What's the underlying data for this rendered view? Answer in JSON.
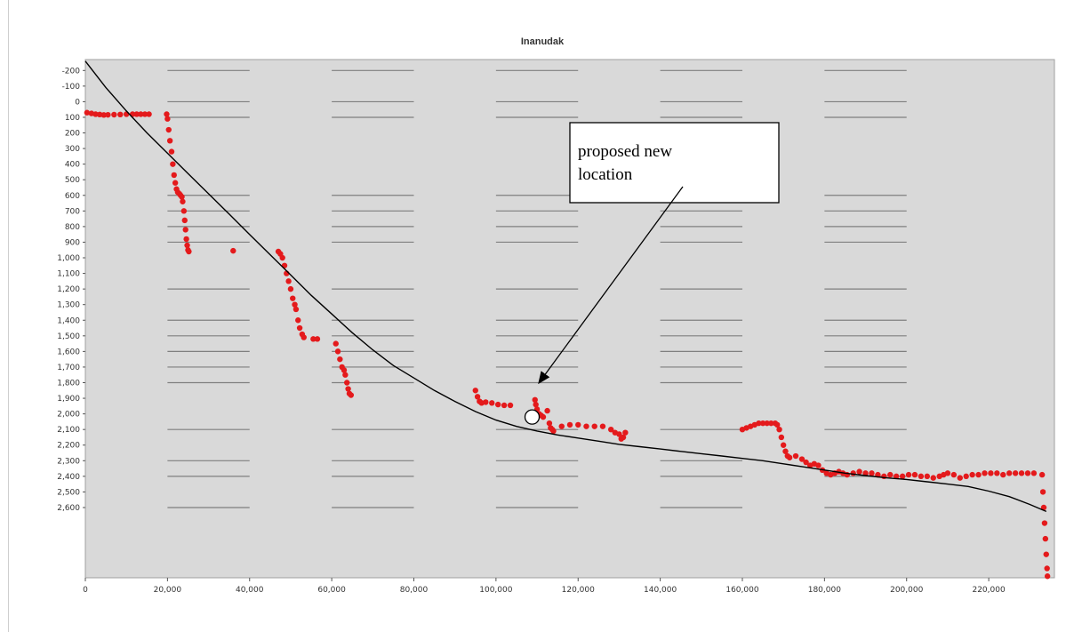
{
  "chart_data": {
    "type": "scatter",
    "title": "Inanudak",
    "xlabel": "",
    "ylabel": "",
    "xlim": [
      0,
      236000
    ],
    "ylim": [
      3050,
      -270
    ],
    "x_ticks": [
      {
        "value": 0,
        "label": "0"
      },
      {
        "value": 20000,
        "label": "20,000"
      },
      {
        "value": 40000,
        "label": "40,000"
      },
      {
        "value": 60000,
        "label": "60,000"
      },
      {
        "value": 80000,
        "label": "80,000"
      },
      {
        "value": 100000,
        "label": "100,000"
      },
      {
        "value": 120000,
        "label": "120,000"
      },
      {
        "value": 140000,
        "label": "140,000"
      },
      {
        "value": 160000,
        "label": "160,000"
      },
      {
        "value": 180000,
        "label": "180,000"
      },
      {
        "value": 200000,
        "label": "200,000"
      },
      {
        "value": 220000,
        "label": "220,000"
      }
    ],
    "y_ticks": [
      {
        "value": -200,
        "label": "-200"
      },
      {
        "value": -100,
        "label": "-100"
      },
      {
        "value": 0,
        "label": "0"
      },
      {
        "value": 100,
        "label": "100"
      },
      {
        "value": 200,
        "label": "200"
      },
      {
        "value": 300,
        "label": "300"
      },
      {
        "value": 400,
        "label": "400"
      },
      {
        "value": 500,
        "label": "500"
      },
      {
        "value": 600,
        "label": "600"
      },
      {
        "value": 700,
        "label": "700"
      },
      {
        "value": 800,
        "label": "800"
      },
      {
        "value": 900,
        "label": "900"
      },
      {
        "value": 1000,
        "label": "1,000"
      },
      {
        "value": 1100,
        "label": "1,100"
      },
      {
        "value": 1200,
        "label": "1,200"
      },
      {
        "value": 1300,
        "label": "1,300"
      },
      {
        "value": 1400,
        "label": "1,400"
      },
      {
        "value": 1500,
        "label": "1,500"
      },
      {
        "value": 1600,
        "label": "1,600"
      },
      {
        "value": 1700,
        "label": "1,700"
      },
      {
        "value": 1800,
        "label": "1,800"
      },
      {
        "value": 1900,
        "label": "1,900"
      },
      {
        "value": 2000,
        "label": "2,000"
      },
      {
        "value": 2100,
        "label": "2,100"
      },
      {
        "value": 2200,
        "label": "2,200"
      },
      {
        "value": 2300,
        "label": "2,300"
      },
      {
        "value": 2400,
        "label": "2,400"
      },
      {
        "value": 2500,
        "label": "2,500"
      },
      {
        "value": 2600,
        "label": "2,600"
      }
    ],
    "grid_rows": [
      -200,
      0,
      100,
      600,
      700,
      800,
      900,
      1200,
      1400,
      1500,
      1600,
      1700,
      1800,
      2100,
      2300,
      2400,
      2600
    ],
    "series": [
      {
        "kind": "scatter",
        "color": "#e41a1c",
        "points": [
          [
            400,
            70
          ],
          [
            1500,
            75
          ],
          [
            2500,
            80
          ],
          [
            3500,
            82
          ],
          [
            4500,
            85
          ],
          [
            5500,
            84
          ],
          [
            7000,
            83
          ],
          [
            8500,
            82
          ],
          [
            10000,
            80
          ],
          [
            11500,
            80
          ],
          [
            12500,
            80
          ],
          [
            13500,
            80
          ],
          [
            14500,
            80
          ],
          [
            15500,
            80
          ],
          [
            19800,
            80
          ],
          [
            20000,
            110
          ],
          [
            20300,
            180
          ],
          [
            20600,
            250
          ],
          [
            21000,
            320
          ],
          [
            21300,
            400
          ],
          [
            21600,
            470
          ],
          [
            21900,
            520
          ],
          [
            22200,
            560
          ],
          [
            22500,
            580
          ],
          [
            22900,
            590
          ],
          [
            23200,
            600
          ],
          [
            23500,
            610
          ],
          [
            23700,
            640
          ],
          [
            24000,
            700
          ],
          [
            24200,
            760
          ],
          [
            24400,
            820
          ],
          [
            24600,
            880
          ],
          [
            24800,
            920
          ],
          [
            25000,
            950
          ],
          [
            25200,
            960
          ],
          [
            36000,
            955
          ],
          [
            47000,
            960
          ],
          [
            47500,
            975
          ],
          [
            48000,
            1000
          ],
          [
            48500,
            1050
          ],
          [
            49000,
            1100
          ],
          [
            49500,
            1150
          ],
          [
            50000,
            1200
          ],
          [
            50500,
            1260
          ],
          [
            51000,
            1300
          ],
          [
            51300,
            1330
          ],
          [
            51800,
            1400
          ],
          [
            52200,
            1450
          ],
          [
            52800,
            1490
          ],
          [
            53200,
            1510
          ],
          [
            55500,
            1520
          ],
          [
            56500,
            1520
          ],
          [
            61000,
            1550
          ],
          [
            61500,
            1600
          ],
          [
            62000,
            1650
          ],
          [
            62500,
            1700
          ],
          [
            63000,
            1720
          ],
          [
            63300,
            1750
          ],
          [
            63700,
            1800
          ],
          [
            64000,
            1840
          ],
          [
            64300,
            1870
          ],
          [
            64700,
            1880
          ],
          [
            95000,
            1850
          ],
          [
            95500,
            1890
          ],
          [
            96000,
            1920
          ],
          [
            96500,
            1930
          ],
          [
            97500,
            1925
          ],
          [
            99000,
            1930
          ],
          [
            100500,
            1940
          ],
          [
            102000,
            1945
          ],
          [
            103500,
            1945
          ],
          [
            109500,
            1910
          ],
          [
            109700,
            1940
          ],
          [
            110000,
            1970
          ],
          [
            110500,
            2000
          ],
          [
            111000,
            2010
          ],
          [
            111500,
            2020
          ],
          [
            112500,
            1980
          ],
          [
            113000,
            2060
          ],
          [
            113300,
            2090
          ],
          [
            113700,
            2100
          ],
          [
            114000,
            2110
          ],
          [
            116000,
            2080
          ],
          [
            118000,
            2070
          ],
          [
            120000,
            2070
          ],
          [
            122000,
            2080
          ],
          [
            124000,
            2080
          ],
          [
            126000,
            2080
          ],
          [
            128000,
            2100
          ],
          [
            129000,
            2120
          ],
          [
            130000,
            2130
          ],
          [
            130500,
            2160
          ],
          [
            131000,
            2150
          ],
          [
            131500,
            2120
          ],
          [
            160000,
            2100
          ],
          [
            161000,
            2090
          ],
          [
            162000,
            2080
          ],
          [
            163000,
            2070
          ],
          [
            164000,
            2060
          ],
          [
            165000,
            2060
          ],
          [
            166000,
            2060
          ],
          [
            167000,
            2060
          ],
          [
            168000,
            2060
          ],
          [
            168500,
            2070
          ],
          [
            169000,
            2100
          ],
          [
            169500,
            2150
          ],
          [
            170000,
            2200
          ],
          [
            170500,
            2240
          ],
          [
            171000,
            2270
          ],
          [
            171500,
            2280
          ],
          [
            173000,
            2270
          ],
          [
            174500,
            2290
          ],
          [
            175500,
            2310
          ],
          [
            176500,
            2330
          ],
          [
            177500,
            2320
          ],
          [
            178500,
            2330
          ],
          [
            179500,
            2360
          ],
          [
            180500,
            2380
          ],
          [
            181500,
            2390
          ],
          [
            182500,
            2380
          ],
          [
            183500,
            2370
          ],
          [
            184500,
            2380
          ],
          [
            185500,
            2390
          ],
          [
            187000,
            2380
          ],
          [
            188500,
            2370
          ],
          [
            190000,
            2380
          ],
          [
            191500,
            2380
          ],
          [
            193000,
            2390
          ],
          [
            194500,
            2400
          ],
          [
            196000,
            2390
          ],
          [
            197500,
            2400
          ],
          [
            199000,
            2400
          ],
          [
            200500,
            2390
          ],
          [
            202000,
            2390
          ],
          [
            203500,
            2400
          ],
          [
            205000,
            2400
          ],
          [
            206500,
            2410
          ],
          [
            208000,
            2400
          ],
          [
            209000,
            2390
          ],
          [
            210000,
            2380
          ],
          [
            211500,
            2390
          ],
          [
            213000,
            2410
          ],
          [
            214500,
            2400
          ],
          [
            216000,
            2390
          ],
          [
            217500,
            2390
          ],
          [
            219000,
            2380
          ],
          [
            220500,
            2380
          ],
          [
            222000,
            2380
          ],
          [
            223500,
            2390
          ],
          [
            225000,
            2380
          ],
          [
            226500,
            2380
          ],
          [
            228000,
            2380
          ],
          [
            229500,
            2380
          ],
          [
            231000,
            2380
          ],
          [
            233000,
            2390
          ],
          [
            233200,
            2500
          ],
          [
            233400,
            2600
          ],
          [
            233600,
            2700
          ],
          [
            233800,
            2800
          ],
          [
            234000,
            2900
          ],
          [
            234200,
            2990
          ],
          [
            234300,
            3040
          ]
        ]
      },
      {
        "kind": "line",
        "color": "#000000",
        "points": [
          [
            0,
            -260
          ],
          [
            5000,
            -90
          ],
          [
            10000,
            60
          ],
          [
            15000,
            200
          ],
          [
            20000,
            330
          ],
          [
            25000,
            460
          ],
          [
            30000,
            590
          ],
          [
            35000,
            720
          ],
          [
            40000,
            850
          ],
          [
            45000,
            980
          ],
          [
            50000,
            1110
          ],
          [
            55000,
            1240
          ],
          [
            60000,
            1360
          ],
          [
            65000,
            1480
          ],
          [
            70000,
            1590
          ],
          [
            75000,
            1690
          ],
          [
            80000,
            1770
          ],
          [
            85000,
            1850
          ],
          [
            90000,
            1920
          ],
          [
            95000,
            1985
          ],
          [
            100000,
            2040
          ],
          [
            105000,
            2080
          ],
          [
            110000,
            2110
          ],
          [
            115000,
            2135
          ],
          [
            120000,
            2155
          ],
          [
            125000,
            2175
          ],
          [
            130000,
            2195
          ],
          [
            135000,
            2210
          ],
          [
            140000,
            2225
          ],
          [
            145000,
            2240
          ],
          [
            150000,
            2255
          ],
          [
            155000,
            2270
          ],
          [
            160000,
            2285
          ],
          [
            165000,
            2300
          ],
          [
            170000,
            2320
          ],
          [
            175000,
            2340
          ],
          [
            180000,
            2360
          ],
          [
            185000,
            2380
          ],
          [
            190000,
            2395
          ],
          [
            195000,
            2410
          ],
          [
            200000,
            2420
          ],
          [
            205000,
            2435
          ],
          [
            210000,
            2450
          ],
          [
            215000,
            2465
          ],
          [
            220000,
            2495
          ],
          [
            225000,
            2530
          ],
          [
            230000,
            2580
          ],
          [
            234000,
            2625
          ]
        ]
      }
    ],
    "highlight_point": {
      "x": 108800,
      "y": 2020
    },
    "annotation": {
      "lines": [
        "proposed new",
        "location"
      ],
      "arrow_tip": {
        "x": 110500,
        "y": 1800
      }
    }
  }
}
